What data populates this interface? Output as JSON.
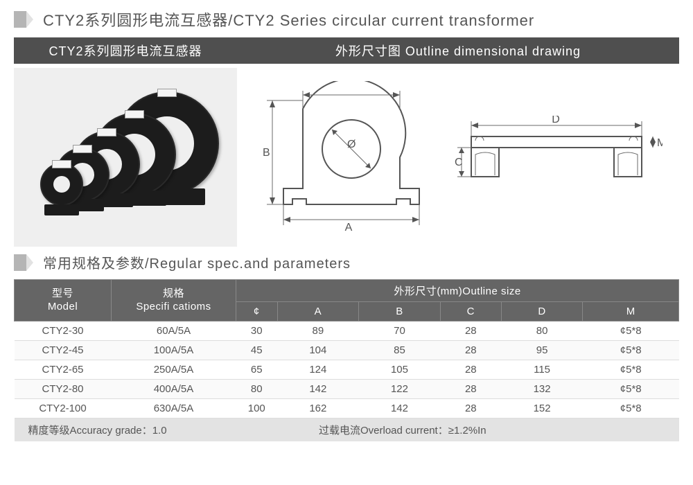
{
  "title_main": "CTY2系列圆形电流互感器/CTY2 Series circular current transformer",
  "header_left": "CTY2系列圆形电流互感器",
  "header_right": "外形尺寸图 Outline dimensional drawing",
  "specs_title": "常用规格及参数/Regular spec.and parameters",
  "table": {
    "head_model_cn": "型号",
    "head_model_en": "Model",
    "head_spec_cn": "规格",
    "head_spec_en": "Specifi catioms",
    "head_size": "外形尺寸(mm)Outline size",
    "cols": [
      "¢",
      "A",
      "B",
      "C",
      "D",
      "M"
    ],
    "rows": [
      {
        "model": "CTY2-30",
        "spec": "60A/5A",
        "phi": "30",
        "A": "89",
        "B": "70",
        "C": "28",
        "D": "80",
        "M": "¢5*8"
      },
      {
        "model": "CTY2-45",
        "spec": "100A/5A",
        "phi": "45",
        "A": "104",
        "B": "85",
        "C": "28",
        "D": "95",
        "M": "¢5*8"
      },
      {
        "model": "CTY2-65",
        "spec": "250A/5A",
        "phi": "65",
        "A": "124",
        "B": "105",
        "C": "28",
        "D": "115",
        "M": "¢5*8"
      },
      {
        "model": "CTY2-80",
        "spec": "400A/5A",
        "phi": "80",
        "A": "142",
        "B": "122",
        "C": "28",
        "D": "132",
        "M": "¢5*8"
      },
      {
        "model": "CTY2-100",
        "spec": "630A/5A",
        "phi": "100",
        "A": "162",
        "B": "142",
        "C": "28",
        "D": "152",
        "M": "¢5*8"
      }
    ],
    "footer_left": "精度等级Accuracy grade：1.0",
    "footer_right": "过载电流Overload current：≥1.2%In"
  },
  "drawing": {
    "dim_A": "A",
    "dim_B": "B",
    "dim_C": "C",
    "dim_D": "D",
    "dim_M": "M",
    "dim_phi": "Ø"
  },
  "colors": {
    "header_bg": "#4f4f4f",
    "thead_bg": "#656565",
    "panel_bg": "#efefef",
    "footer_bg": "#e3e3e3",
    "titlebar": "#b5b5b5",
    "text": "#555555"
  }
}
